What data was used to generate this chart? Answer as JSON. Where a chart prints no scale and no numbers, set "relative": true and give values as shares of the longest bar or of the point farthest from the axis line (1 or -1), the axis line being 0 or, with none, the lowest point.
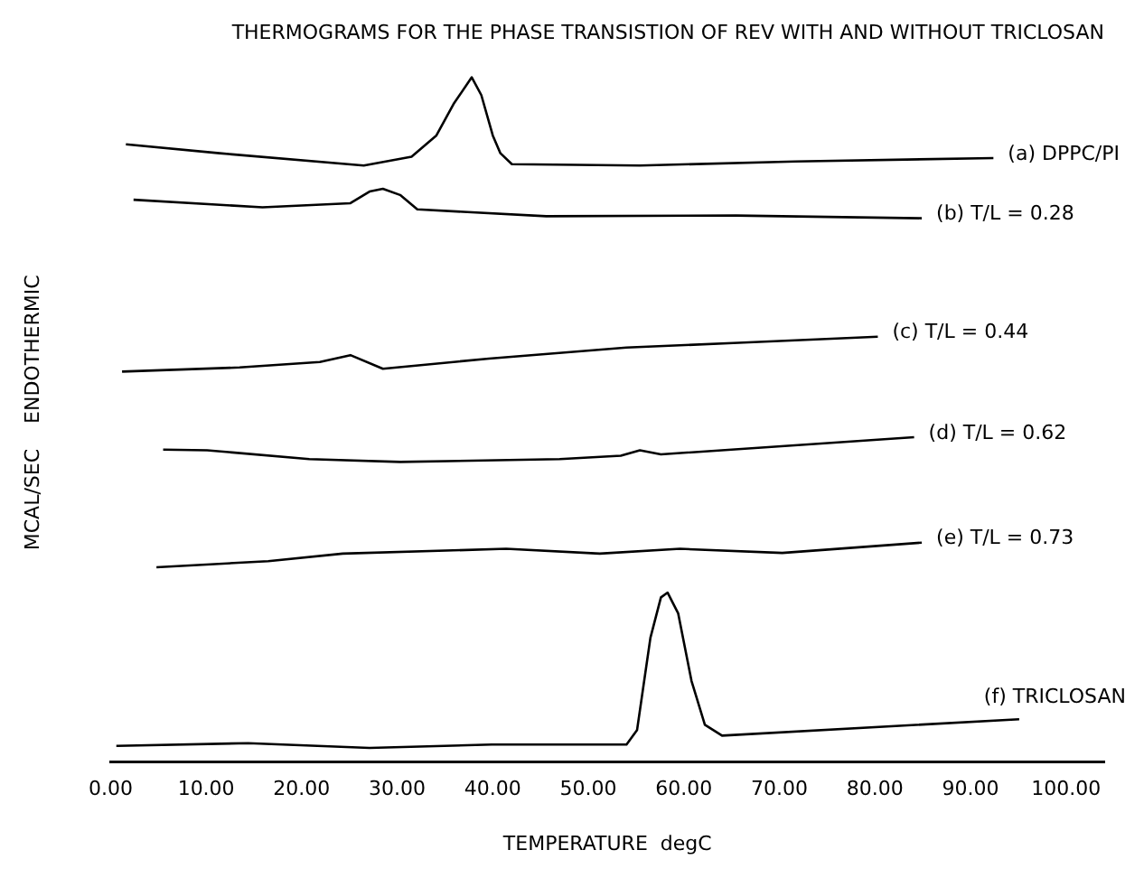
{
  "chart_data": {
    "type": "line",
    "title": "THERMOGRAMS FOR THE PHASE TRANSISTION OF REV WITH AND WITHOUT TRICLOSAN",
    "xlabel": "TEMPERATURE  degC",
    "ylabel": "MCAL/SEC    ENDOTHERMIC",
    "relative": true,
    "legend": false,
    "grid": false,
    "marker": "none",
    "line_style": "solid",
    "xlim": [
      0,
      104
    ],
    "xticks": [
      {
        "value": 0,
        "label": "0.00"
      },
      {
        "value": 10,
        "label": "10.00"
      },
      {
        "value": 20,
        "label": "20.00"
      },
      {
        "value": 30,
        "label": "30.00"
      },
      {
        "value": 40,
        "label": "40.00"
      },
      {
        "value": 50,
        "label": "50.00"
      },
      {
        "value": 60,
        "label": "60.00"
      },
      {
        "value": 70,
        "label": "70.00"
      },
      {
        "value": 80,
        "label": "80.00"
      },
      {
        "value": 90,
        "label": "90.00"
      },
      {
        "value": 100,
        "label": "100.00"
      }
    ],
    "series": [
      {
        "name": "(a) DPPC/PI",
        "color": "#000000",
        "x": [
          1.6,
          11.4,
          26.5,
          31.5,
          34.1,
          35.9,
          37.8,
          38.8,
          40.0,
          40.8,
          42.0,
          55.4,
          71.7,
          92.4
        ],
        "values": [
          0.902,
          0.889,
          0.871,
          0.884,
          0.915,
          0.961,
          1.0,
          0.974,
          0.915,
          0.889,
          0.873,
          0.871,
          0.877,
          0.882
        ]
      },
      {
        "name": "(b) T/L = 0.28",
        "color": "#000000",
        "x": [
          2.4,
          15.9,
          25.1,
          27.1,
          28.5,
          30.3,
          32.1,
          45.6,
          65.5,
          84.9
        ],
        "values": [
          0.821,
          0.81,
          0.816,
          0.833,
          0.837,
          0.828,
          0.807,
          0.797,
          0.798,
          0.794
        ]
      },
      {
        "name": "(c) T/L = 0.44",
        "color": "#000000",
        "x": [
          1.2,
          13.5,
          21.9,
          25.1,
          28.5,
          39.6,
          54.0,
          65.7,
          80.3
        ],
        "values": [
          0.57,
          0.576,
          0.584,
          0.594,
          0.574,
          0.589,
          0.605,
          0.612,
          0.621
        ]
      },
      {
        "name": "(d) T/L = 0.62",
        "color": "#000000",
        "x": [
          5.5,
          10.1,
          20.8,
          30.3,
          47.0,
          53.4,
          55.4,
          57.6,
          84.1
        ],
        "values": [
          0.456,
          0.455,
          0.442,
          0.438,
          0.442,
          0.447,
          0.455,
          0.449,
          0.474
        ]
      },
      {
        "name": "(e) T/L = 0.73",
        "color": "#000000",
        "x": [
          4.8,
          16.5,
          24.3,
          41.4,
          51.2,
          59.6,
          70.3,
          84.9
        ],
        "values": [
          0.284,
          0.293,
          0.304,
          0.311,
          0.304,
          0.311,
          0.305,
          0.32
        ]
      },
      {
        "name": "(f) TRICLOSAN",
        "color": "#000000",
        "x": [
          0.6,
          14.4,
          27.1,
          39.9,
          54.0,
          55.1,
          56.5,
          57.6,
          58.3,
          59.4,
          60.8,
          62.2,
          64.0,
          95.1
        ],
        "values": [
          0.023,
          0.027,
          0.02,
          0.025,
          0.025,
          0.046,
          0.181,
          0.24,
          0.247,
          0.217,
          0.118,
          0.054,
          0.038,
          0.062
        ]
      }
    ]
  }
}
